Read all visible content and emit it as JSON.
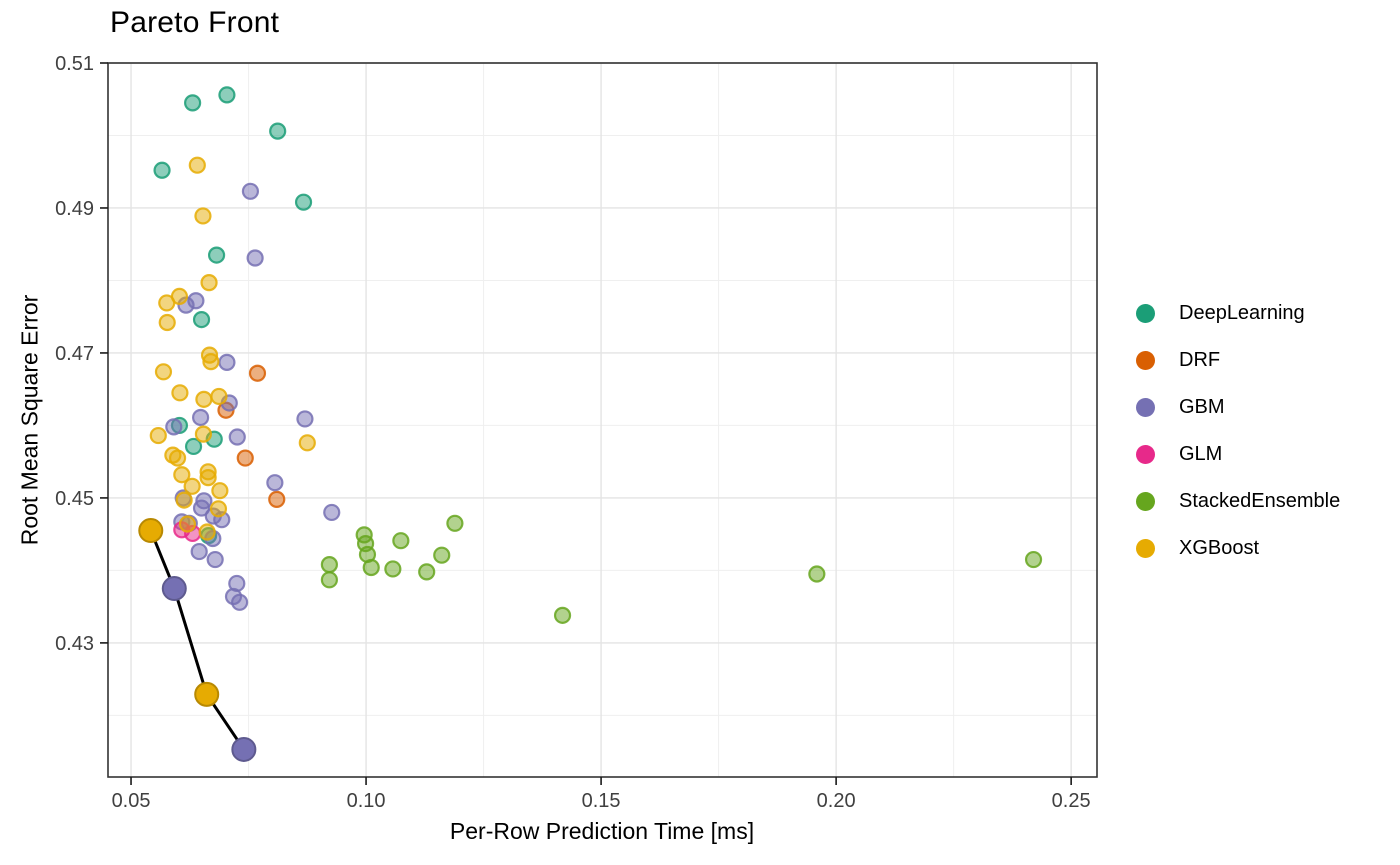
{
  "chart_data": {
    "type": "scatter",
    "title": "Pareto Front",
    "xlabel": "Per-Row Prediction Time [ms]",
    "ylabel": "Root Mean Square Error",
    "xlim": [
      0.0451,
      0.2555
    ],
    "ylim": [
      0.4115,
      0.51
    ],
    "grid": "major and minor, light gray on white panel, black panel border",
    "legend_position": "right",
    "x_ticks": {
      "values": [
        0.05,
        0.1,
        0.15,
        0.2,
        0.25
      ],
      "labels": [
        "0.05",
        "0.10",
        "0.15",
        "0.20",
        "0.25"
      ]
    },
    "x_minor_ticks": [
      0.075,
      0.125,
      0.175,
      0.225
    ],
    "y_ticks": {
      "values": [
        0.51,
        0.49,
        0.47,
        0.45,
        0.43
      ],
      "labels": [
        "0.51",
        "0.49",
        "0.47",
        "0.45",
        "0.43"
      ]
    },
    "y_minor_ticks": [
      0.5,
      0.48,
      0.46,
      0.44,
      0.42
    ],
    "series": [
      {
        "name": "DeepLearning",
        "color": "#1B9E77",
        "points": [
          [
            0.0631,
            0.5045
          ],
          [
            0.0704,
            0.5056
          ],
          [
            0.0812,
            0.5006
          ],
          [
            0.0566,
            0.4952
          ],
          [
            0.0867,
            0.4908
          ],
          [
            0.0682,
            0.4835
          ],
          [
            0.065,
            0.4746
          ],
          [
            0.0603,
            0.46
          ],
          [
            0.0677,
            0.4581
          ],
          [
            0.0633,
            0.4571
          ],
          [
            0.0665,
            0.4448
          ]
        ]
      },
      {
        "name": "DRF",
        "color": "#D95F02",
        "points": [
          [
            0.0769,
            0.4672
          ],
          [
            0.0702,
            0.4621
          ],
          [
            0.0743,
            0.4555
          ],
          [
            0.081,
            0.4498
          ]
        ]
      },
      {
        "name": "GBM",
        "color": "#7570B3",
        "points": [
          [
            0.0754,
            0.4923
          ],
          [
            0.0764,
            0.4831
          ],
          [
            0.0638,
            0.4772
          ],
          [
            0.0617,
            0.4766
          ],
          [
            0.0704,
            0.4687
          ],
          [
            0.0709,
            0.4631
          ],
          [
            0.0648,
            0.4611
          ],
          [
            0.087,
            0.4609
          ],
          [
            0.0591,
            0.4598
          ],
          [
            0.0726,
            0.4584
          ],
          [
            0.0806,
            0.4521
          ],
          [
            0.0611,
            0.45
          ],
          [
            0.0655,
            0.4496
          ],
          [
            0.065,
            0.4486
          ],
          [
            0.0927,
            0.448
          ],
          [
            0.0675,
            0.4475
          ],
          [
            0.0693,
            0.447
          ],
          [
            0.0608,
            0.4467
          ],
          [
            0.0624,
            0.4465
          ],
          [
            0.0674,
            0.4444
          ],
          [
            0.0645,
            0.4426
          ],
          [
            0.0679,
            0.4415
          ],
          [
            0.0725,
            0.4382
          ],
          [
            0.0718,
            0.4364
          ],
          [
            0.0731,
            0.4356
          ]
        ]
      },
      {
        "name": "GLM",
        "color": "#E7298A",
        "points": [
          [
            0.0608,
            0.4456
          ],
          [
            0.0631,
            0.4451
          ]
        ]
      },
      {
        "name": "StackedEnsemble",
        "color": "#66A61E",
        "points": [
          [
            0.0922,
            0.4408
          ],
          [
            0.0922,
            0.4387
          ],
          [
            0.0996,
            0.4449
          ],
          [
            0.0999,
            0.4437
          ],
          [
            0.1003,
            0.4422
          ],
          [
            0.1011,
            0.4404
          ],
          [
            0.1057,
            0.4402
          ],
          [
            0.1074,
            0.4441
          ],
          [
            0.1129,
            0.4398
          ],
          [
            0.1161,
            0.4421
          ],
          [
            0.1189,
            0.4465
          ],
          [
            0.1418,
            0.4338
          ],
          [
            0.1959,
            0.4395
          ],
          [
            0.242,
            0.4415
          ]
        ]
      },
      {
        "name": "XGBoost",
        "color": "#E6AB02",
        "points": [
          [
            0.0641,
            0.4959
          ],
          [
            0.0653,
            0.4889
          ],
          [
            0.0666,
            0.4797
          ],
          [
            0.0603,
            0.4778
          ],
          [
            0.0576,
            0.4769
          ],
          [
            0.0577,
            0.4742
          ],
          [
            0.0667,
            0.4697
          ],
          [
            0.067,
            0.4688
          ],
          [
            0.0569,
            0.4674
          ],
          [
            0.0604,
            0.4645
          ],
          [
            0.0687,
            0.464
          ],
          [
            0.0655,
            0.4636
          ],
          [
            0.0654,
            0.4588
          ],
          [
            0.0558,
            0.4586
          ],
          [
            0.0875,
            0.4576
          ],
          [
            0.0589,
            0.4559
          ],
          [
            0.0599,
            0.4555
          ],
          [
            0.0664,
            0.4536
          ],
          [
            0.0608,
            0.4532
          ],
          [
            0.0664,
            0.4528
          ],
          [
            0.063,
            0.4516
          ],
          [
            0.0689,
            0.451
          ],
          [
            0.0613,
            0.4497
          ],
          [
            0.0686,
            0.4485
          ],
          [
            0.062,
            0.4464
          ],
          [
            0.0662,
            0.4453
          ]
        ]
      }
    ],
    "pareto_front": {
      "line_color": "#000000",
      "points": [
        {
          "x": 0.0542,
          "y": 0.4455,
          "model": "XGBoost"
        },
        {
          "x": 0.0592,
          "y": 0.4375,
          "model": "GBM"
        },
        {
          "x": 0.0661,
          "y": 0.4229,
          "model": "XGBoost"
        },
        {
          "x": 0.074,
          "y": 0.4153,
          "model": "GBM"
        }
      ]
    },
    "legend_entries": [
      "DeepLearning",
      "DRF",
      "GBM",
      "GLM",
      "StackedEnsemble",
      "XGBoost"
    ]
  },
  "style_colors": {
    "panel_border": "#333333",
    "grid_major": "#e4e4e4",
    "grid_minor": "#efefef",
    "tick_label": "#404040",
    "tick_mark": "#1a1a1a"
  }
}
